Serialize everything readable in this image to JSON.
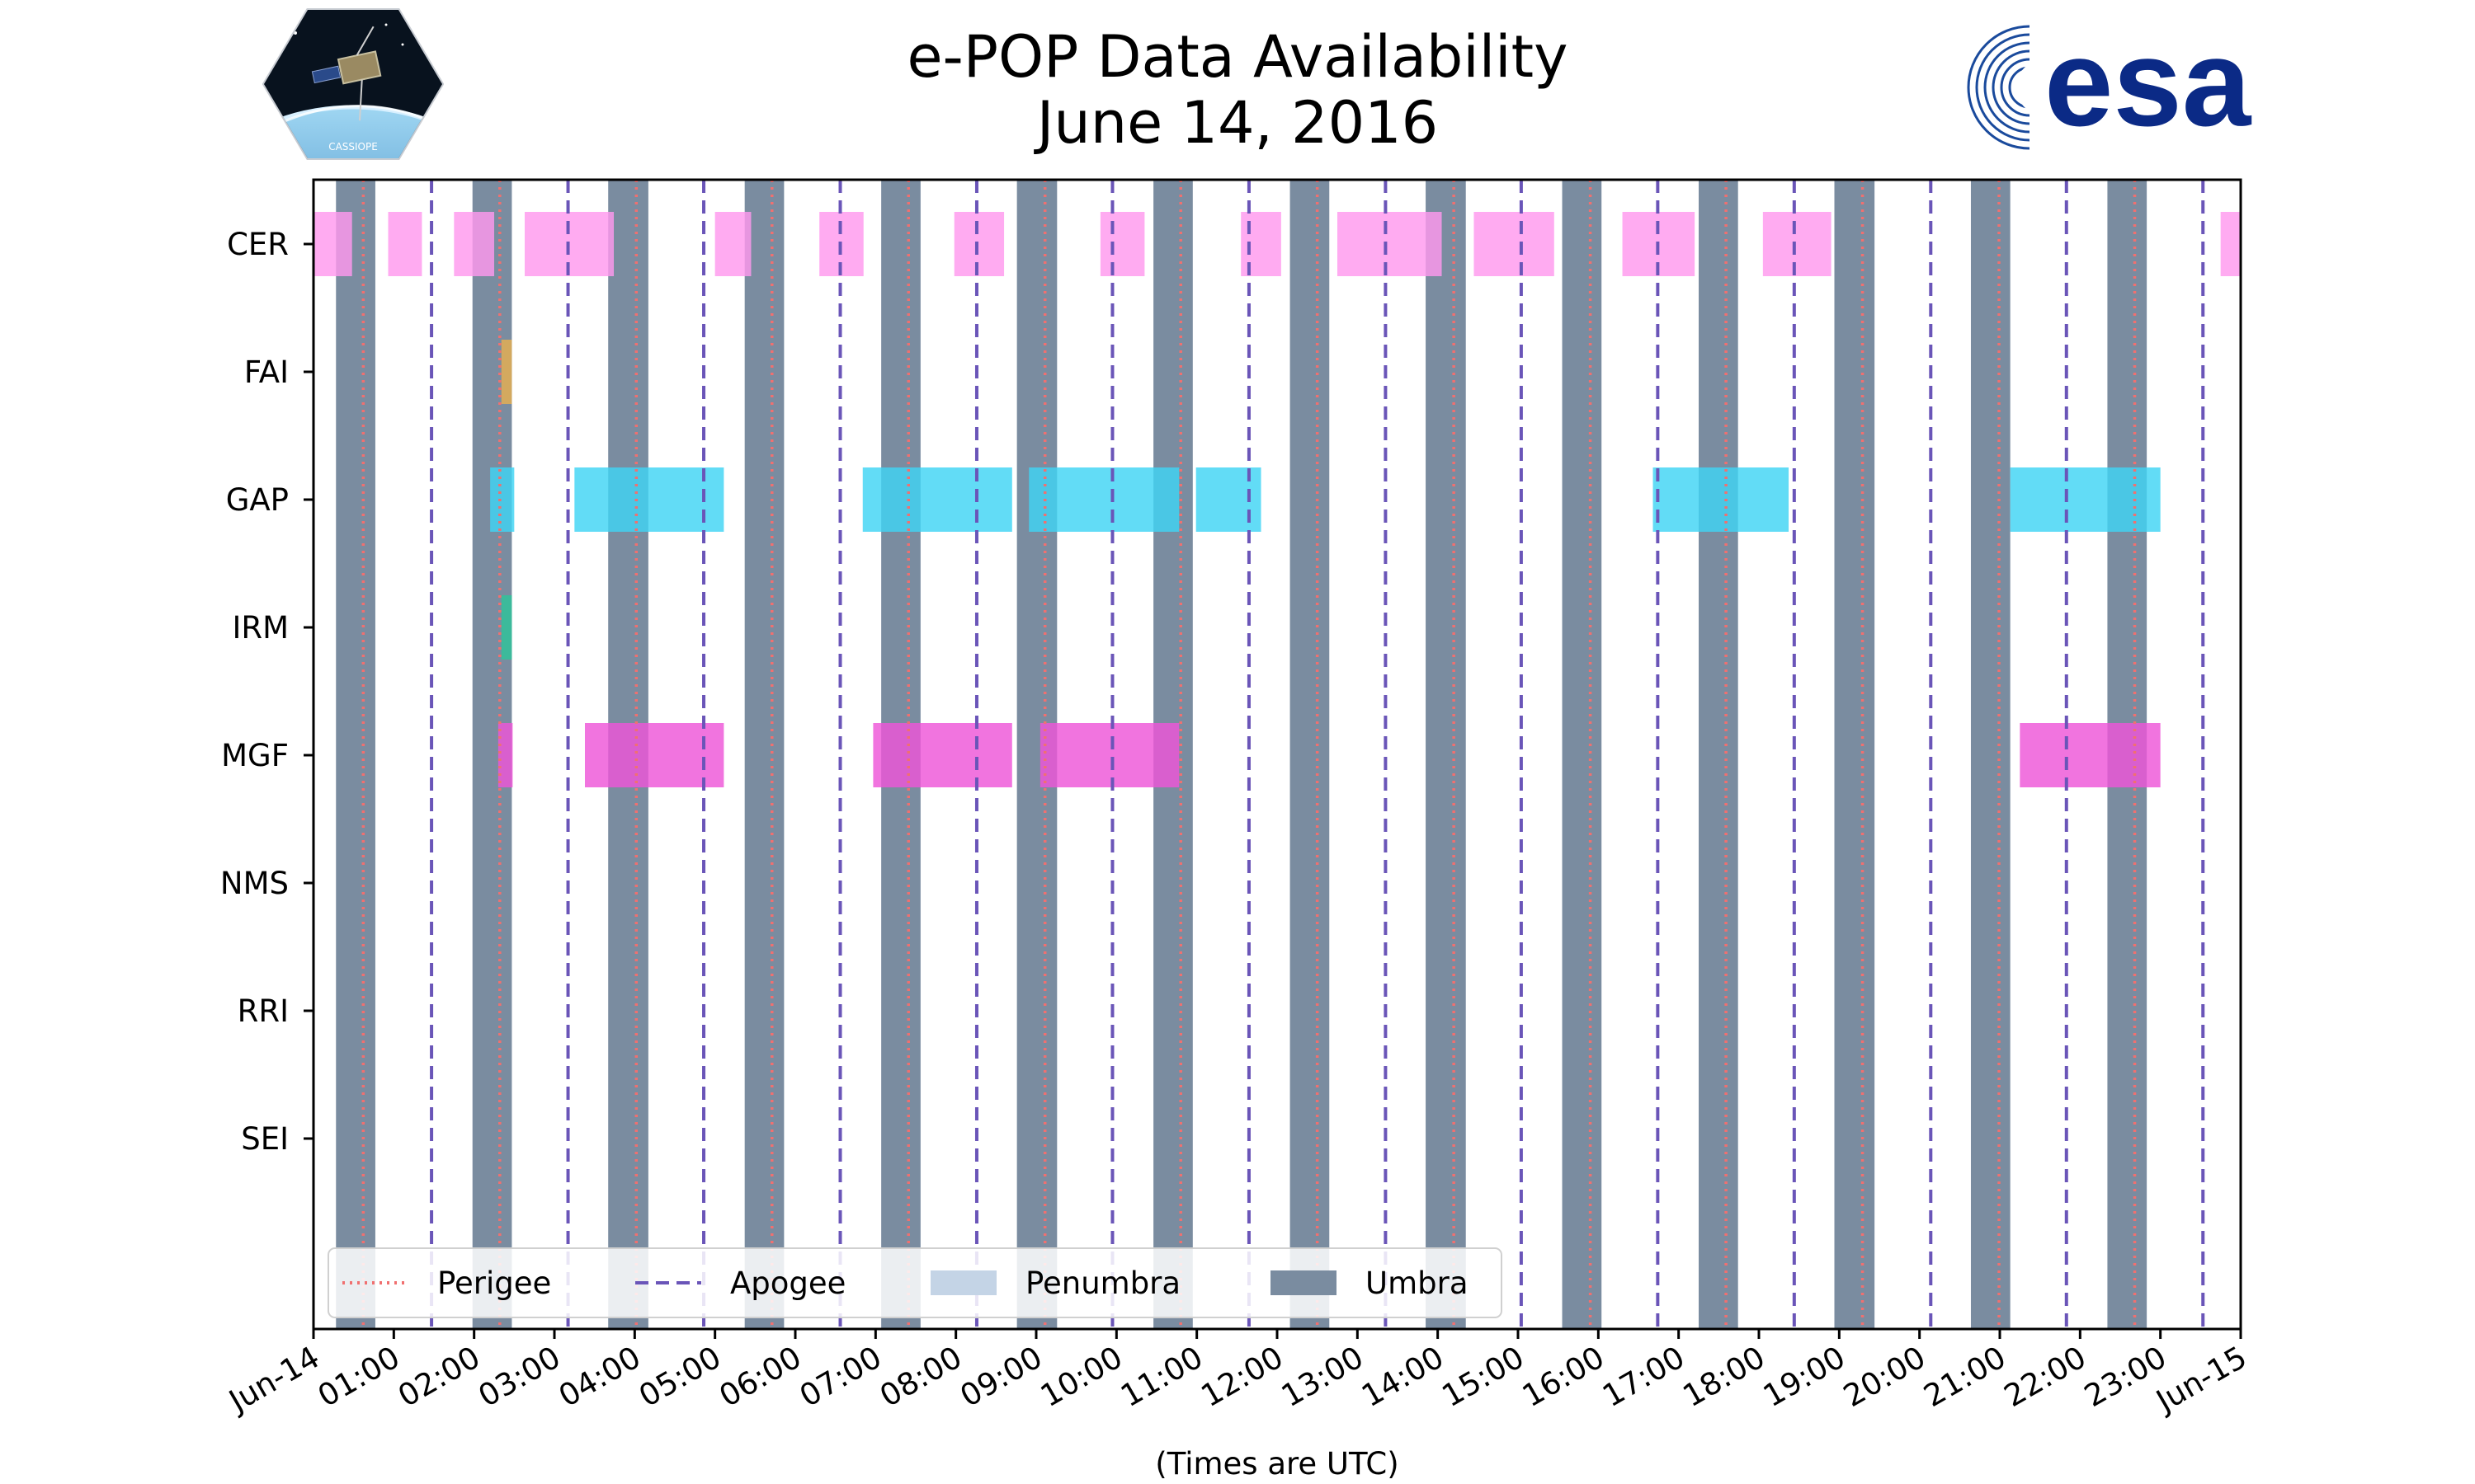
{
  "header": {
    "title_line1": "e-POP Data Availability",
    "title_line2": "June 14, 2016",
    "left_logo_text": "CASSIOPE",
    "right_logo_text": "esa"
  },
  "chart_data": {
    "type": "timeline",
    "title": "e-POP Data Availability June 14, 2016",
    "xlabel": "(Times are UTC)",
    "x_range_hours": [
      0,
      24
    ],
    "x_tick_labels": [
      "Jun-14",
      "01:00",
      "02:00",
      "03:00",
      "04:00",
      "05:00",
      "06:00",
      "07:00",
      "08:00",
      "09:00",
      "10:00",
      "11:00",
      "12:00",
      "13:00",
      "14:00",
      "15:00",
      "16:00",
      "17:00",
      "18:00",
      "19:00",
      "20:00",
      "21:00",
      "22:00",
      "23:00",
      "Jun-15"
    ],
    "instruments": [
      "CER",
      "FAI",
      "GAP",
      "IRM",
      "MGF",
      "NMS",
      "RRI",
      "SEI"
    ],
    "colors": {
      "CER": "#ff99ee",
      "FAI": "#e6b050",
      "GAP": "#40d4f4",
      "IRM": "#2ec49a",
      "MGF": "#ee55d8",
      "umbra": "#7a8ca0",
      "penumbra": "#c4d4e6",
      "perigee": "#f07070",
      "apogee": "#6a55b8"
    },
    "umbra_intervals_hours": [
      [
        0.28,
        0.77
      ],
      [
        1.98,
        2.47
      ],
      [
        3.67,
        4.17
      ],
      [
        5.37,
        5.86
      ],
      [
        7.07,
        7.56
      ],
      [
        8.76,
        9.26
      ],
      [
        10.46,
        10.95
      ],
      [
        12.16,
        12.65
      ],
      [
        13.85,
        14.35
      ],
      [
        15.55,
        16.04
      ],
      [
        17.25,
        17.74
      ],
      [
        18.94,
        19.44
      ],
      [
        20.64,
        21.13
      ],
      [
        22.34,
        22.83
      ]
    ],
    "perigee_hours": [
      0.62,
      2.32,
      4.02,
      5.71,
      7.41,
      9.11,
      10.8,
      12.5,
      14.2,
      15.9,
      17.59,
      19.29,
      20.99,
      22.68
    ],
    "apogee_hours": [
      1.47,
      3.17,
      4.86,
      6.56,
      8.26,
      9.95,
      11.65,
      13.35,
      15.04,
      16.74,
      18.44,
      20.14,
      21.83,
      23.53
    ],
    "availability": {
      "CER": [
        [
          0.0,
          0.48
        ],
        [
          0.93,
          1.35
        ],
        [
          1.75,
          2.25
        ],
        [
          2.63,
          3.74
        ],
        [
          5.0,
          5.45
        ],
        [
          6.3,
          6.85
        ],
        [
          7.98,
          8.6
        ],
        [
          9.8,
          10.35
        ],
        [
          11.55,
          12.05
        ],
        [
          12.75,
          14.05
        ],
        [
          14.45,
          15.45
        ],
        [
          16.3,
          17.2
        ],
        [
          18.05,
          18.9
        ],
        [
          23.75,
          24.0
        ]
      ],
      "FAI": [
        [
          2.34,
          2.47
        ]
      ],
      "GAP": [
        [
          2.2,
          2.5
        ],
        [
          3.25,
          5.11
        ],
        [
          6.84,
          8.7
        ],
        [
          8.91,
          10.78
        ],
        [
          10.99,
          11.8
        ],
        [
          16.68,
          18.37
        ],
        [
          21.13,
          23.0
        ]
      ],
      "IRM": [
        [
          2.34,
          2.47
        ]
      ],
      "MGF": [
        [
          2.3,
          2.48
        ],
        [
          3.38,
          5.11
        ],
        [
          6.97,
          8.7
        ],
        [
          9.05,
          10.78
        ],
        [
          21.25,
          23.0
        ]
      ],
      "NMS": [],
      "RRI": [],
      "SEI": []
    },
    "legend": {
      "placement": "lower-left",
      "entries": [
        {
          "label": "Perigee",
          "style": "dotted-line"
        },
        {
          "label": "Apogee",
          "style": "dashed-line"
        },
        {
          "label": "Penumbra",
          "style": "patch"
        },
        {
          "label": "Umbra",
          "style": "patch"
        }
      ]
    }
  }
}
